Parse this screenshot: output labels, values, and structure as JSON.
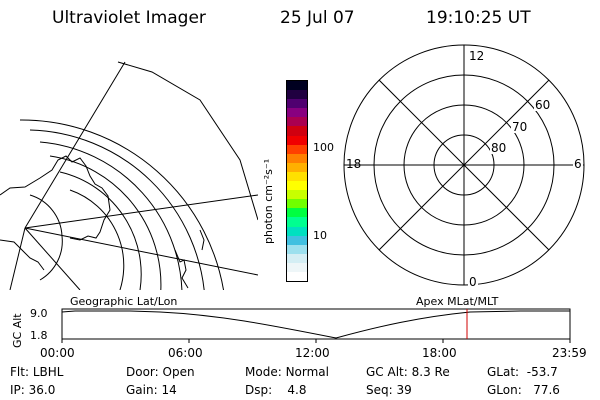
{
  "header": {
    "title": "Ultraviolet Imager",
    "date": "25 Jul 07",
    "time": "19:10:25 UT"
  },
  "colorbar": {
    "unit_label": "photon cm⁻²s⁻¹",
    "ticks": [
      "100",
      "10"
    ],
    "colors": [
      "#000020",
      "#200040",
      "#500070",
      "#880080",
      "#aa0050",
      "#d00010",
      "#f00000",
      "#ff4000",
      "#ff8000",
      "#ffb000",
      "#ffe000",
      "#ffff00",
      "#c8ff00",
      "#70ff00",
      "#00ff40",
      "#00ff90",
      "#00e0c0",
      "#40c0e0",
      "#9ce0ee",
      "#d4eef4",
      "#eef6f8",
      "#ffffff"
    ]
  },
  "polar_plot": {
    "top_label": "12",
    "bottom_label": "0",
    "left_label": "18",
    "right_label": "6",
    "lat_labels": [
      "80",
      "70",
      "60"
    ]
  },
  "timeline": {
    "left_title": "Geographic Lat/Lon",
    "right_title": "Apex MLat/MLT",
    "axis_label": "GC Alt",
    "y_ticks": [
      "9.0",
      "1.8"
    ],
    "x_ticks": [
      "00:00",
      "06:00",
      "12:00",
      "18:00",
      "23:59"
    ]
  },
  "status": {
    "row1": [
      {
        "key": "Flt:",
        "value": "LBHL"
      },
      {
        "key": "Door:",
        "value": "Open"
      },
      {
        "key": "Mode:",
        "value": "Normal"
      },
      {
        "key": "GC Alt:",
        "value": "8.3 Re"
      },
      {
        "key": "GLat:",
        "value": "-53.7"
      }
    ],
    "row2": [
      {
        "key": "IP:",
        "value": "36.0"
      },
      {
        "key": "Gain:",
        "value": "14"
      },
      {
        "key": "Dsp:",
        "value": "4.8"
      },
      {
        "key": "Seq:",
        "value": "39"
      },
      {
        "key": "GLon:",
        "value": "77.6"
      }
    ]
  }
}
